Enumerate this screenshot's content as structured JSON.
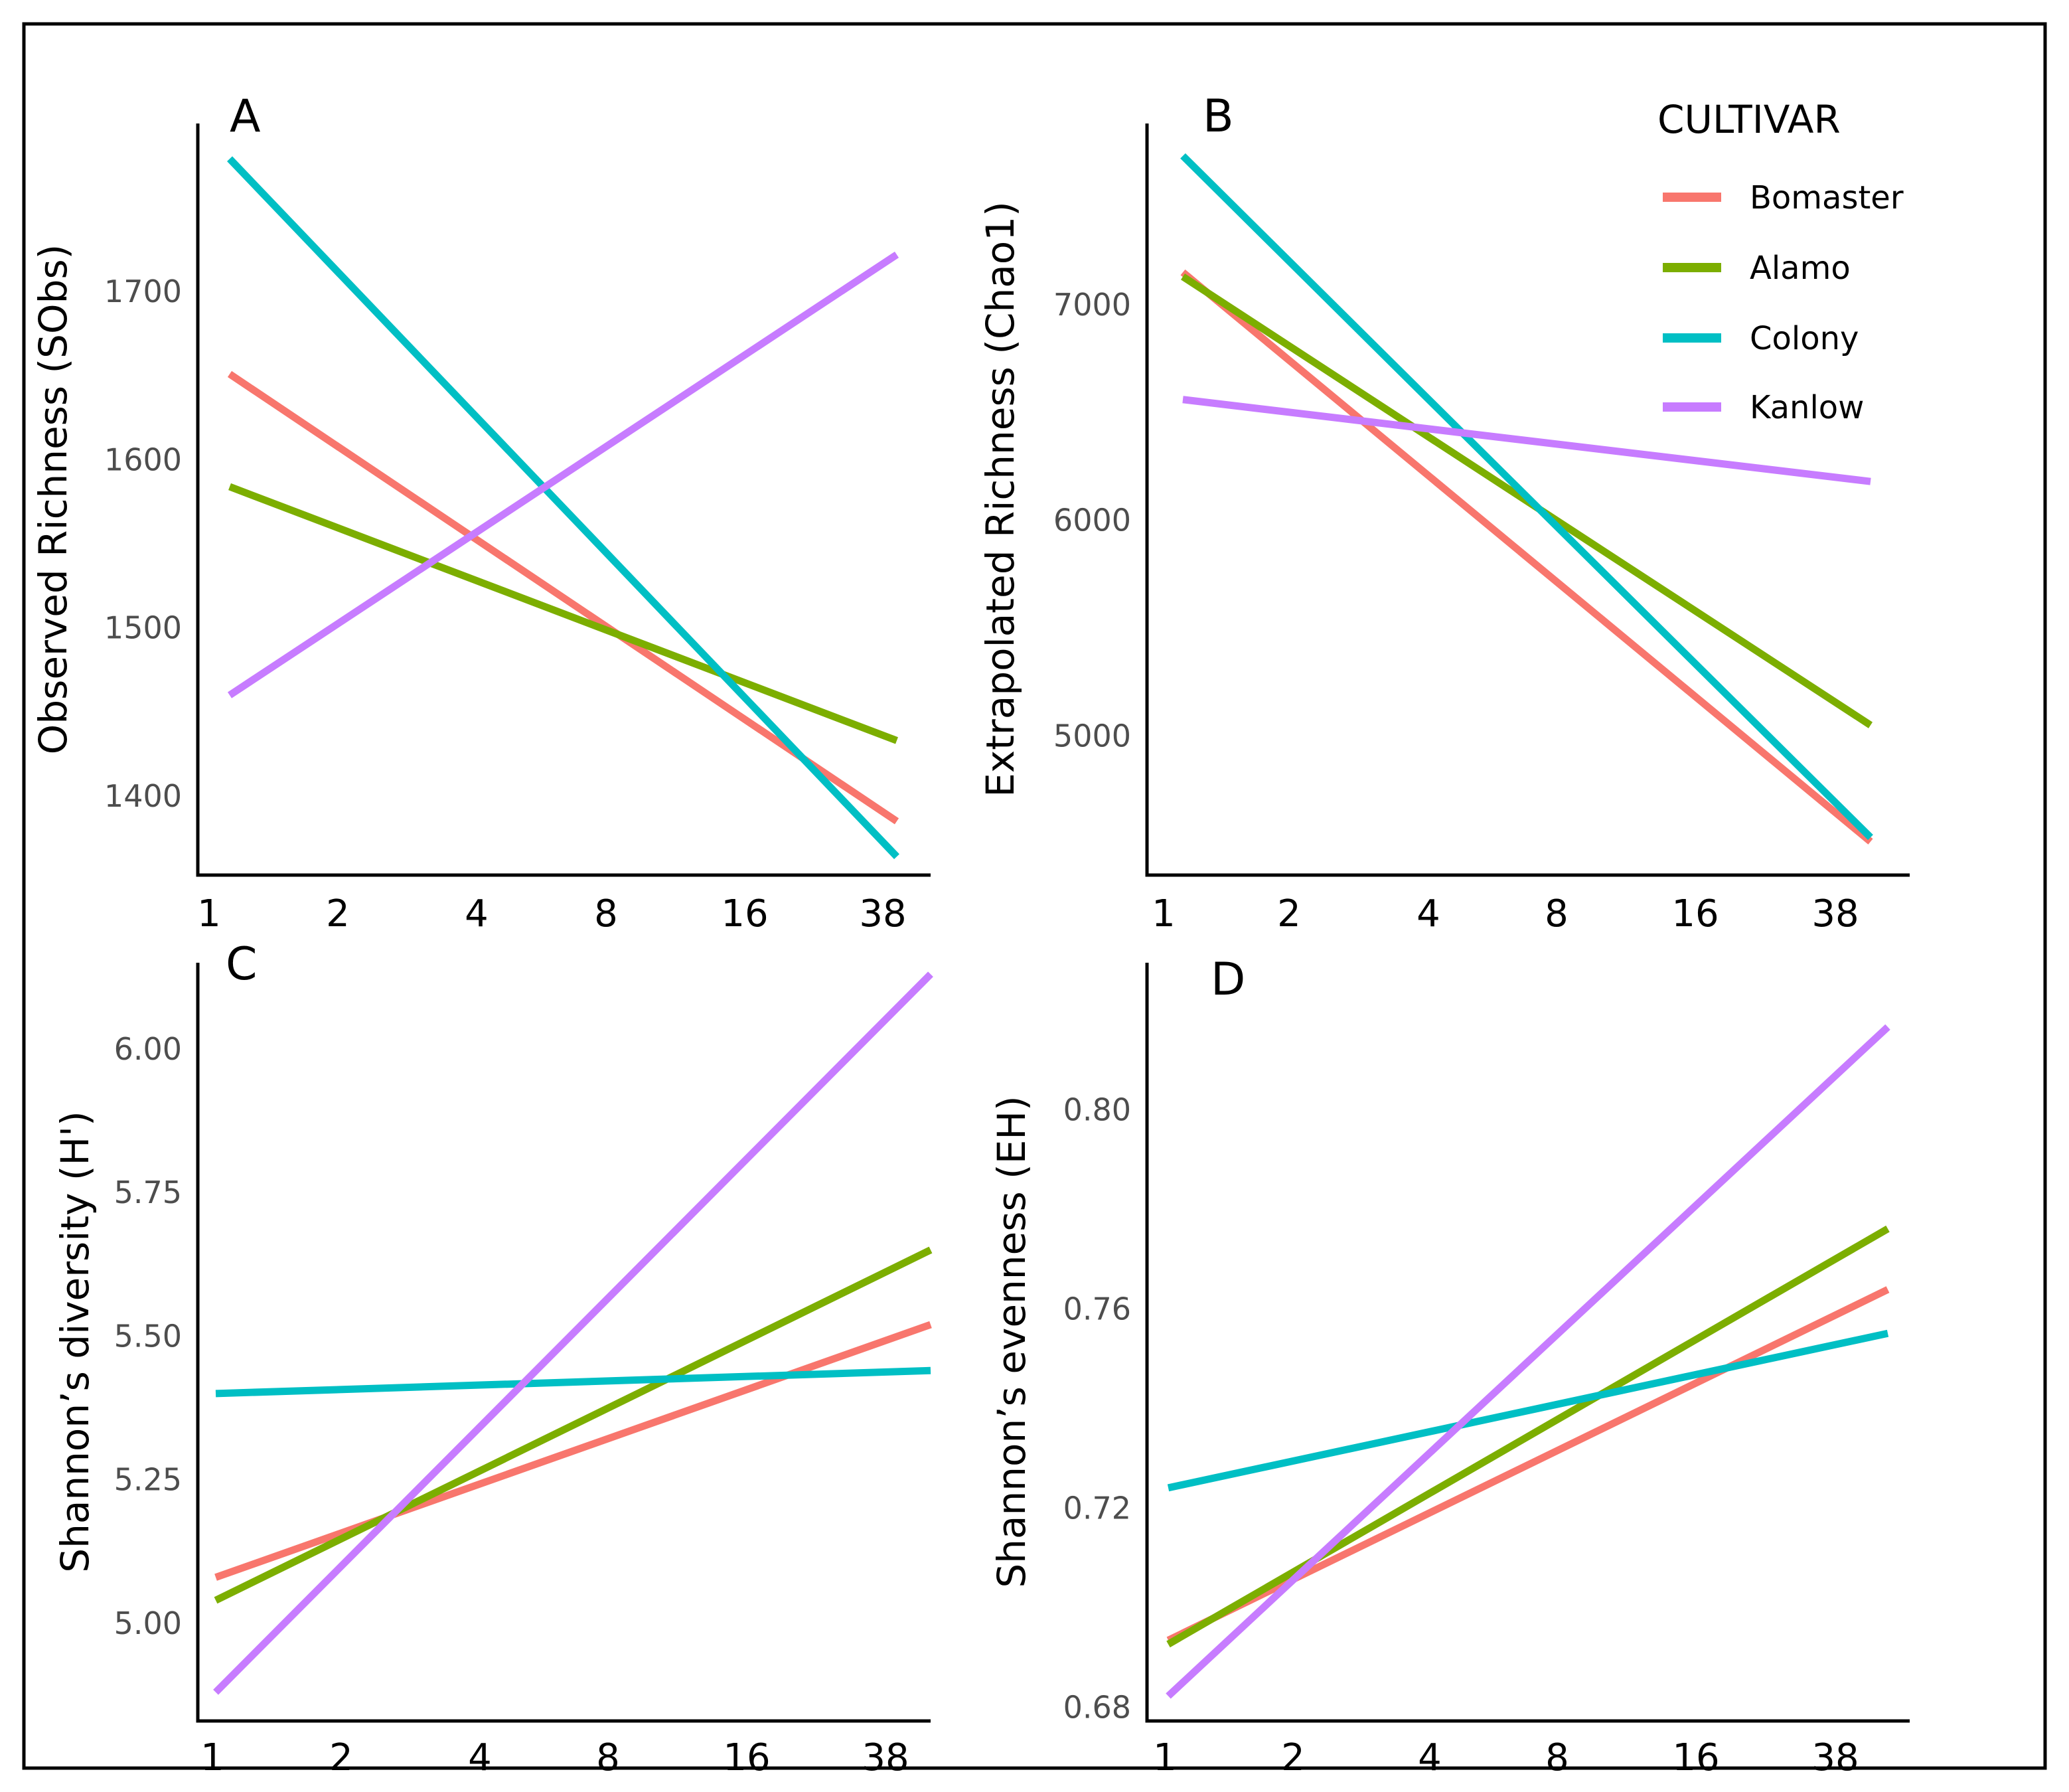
{
  "legend": {
    "title": "CULTIVAR",
    "items": [
      {
        "label": "Bomaster",
        "color": "#F8766D"
      },
      {
        "label": "Alamo",
        "color": "#7CAE00"
      },
      {
        "label": "Colony",
        "color": "#00BFC4"
      },
      {
        "label": "Kanlow",
        "color": "#C77CFF"
      }
    ]
  },
  "chart_data": [
    {
      "type": "line",
      "panel": "A",
      "ylabel": "Observed Richness (SObs)",
      "x_ticks": [
        "1",
        "2",
        "4",
        "8",
        "16",
        "38"
      ],
      "y_ticks": [
        1400,
        1500,
        1600,
        1700
      ],
      "y_tick_labels": [
        "1400",
        "1500",
        "1600",
        "1700"
      ],
      "ylim": [
        1353,
        1800
      ],
      "series": [
        {
          "name": "Bomaster",
          "start": 1651,
          "end": 1385
        },
        {
          "name": "Alamo",
          "start": 1584,
          "end": 1433
        },
        {
          "name": "Colony",
          "start": 1779,
          "end": 1364
        },
        {
          "name": "Kanlow",
          "start": 1460,
          "end": 1722
        }
      ]
    },
    {
      "type": "line",
      "panel": "B",
      "ylabel": "Extrapolated Richness (Chao1)",
      "x_ticks": [
        "1",
        "2",
        "4",
        "8",
        "16",
        "38"
      ],
      "y_ticks": [
        5000,
        6000,
        7000
      ],
      "y_tick_labels": [
        "5000",
        "6000",
        "7000"
      ],
      "ylim": [
        4355,
        7840
      ],
      "series": [
        {
          "name": "Bomaster",
          "start": 7150,
          "end": 4510
        },
        {
          "name": "Alamo",
          "start": 7130,
          "end": 5050
        },
        {
          "name": "Colony",
          "start": 7690,
          "end": 4530
        },
        {
          "name": "Kanlow",
          "start": 6560,
          "end": 6180
        }
      ]
    },
    {
      "type": "line",
      "panel": "C",
      "ylabel": "Shannon’s diversity (H')",
      "x_ticks": [
        "1",
        "2",
        "4",
        "8",
        "16",
        "38"
      ],
      "y_ticks": [
        5.0,
        5.25,
        5.5,
        5.75,
        6.0
      ],
      "y_tick_labels": [
        "5.00",
        "5.25",
        "5.50",
        "5.75",
        "6.00"
      ],
      "ylim": [
        4.83,
        6.15
      ],
      "series": [
        {
          "name": "Bomaster",
          "start": 5.08,
          "end": 5.52
        },
        {
          "name": "Alamo",
          "start": 5.04,
          "end": 5.65
        },
        {
          "name": "Colony",
          "start": 5.4,
          "end": 5.44
        },
        {
          "name": "Kanlow",
          "start": 4.88,
          "end": 6.13
        }
      ]
    },
    {
      "type": "line",
      "panel": "D",
      "ylabel": "Shannon’s evenness (EH)",
      "x_ticks": [
        "1",
        "2",
        "4",
        "8",
        "16",
        "38"
      ],
      "y_ticks": [
        0.68,
        0.72,
        0.76,
        0.8
      ],
      "y_tick_labels": [
        "0.68",
        "0.72",
        "0.76",
        "0.80"
      ],
      "ylim": [
        0.6773,
        0.8295
      ],
      "series": [
        {
          "name": "Bomaster",
          "start": 0.6935,
          "end": 0.7639
        },
        {
          "name": "Alamo",
          "start": 0.6927,
          "end": 0.7761
        },
        {
          "name": "Colony",
          "start": 0.7241,
          "end": 0.7551
        },
        {
          "name": "Kanlow",
          "start": 0.6823,
          "end": 0.8166
        }
      ]
    }
  ]
}
